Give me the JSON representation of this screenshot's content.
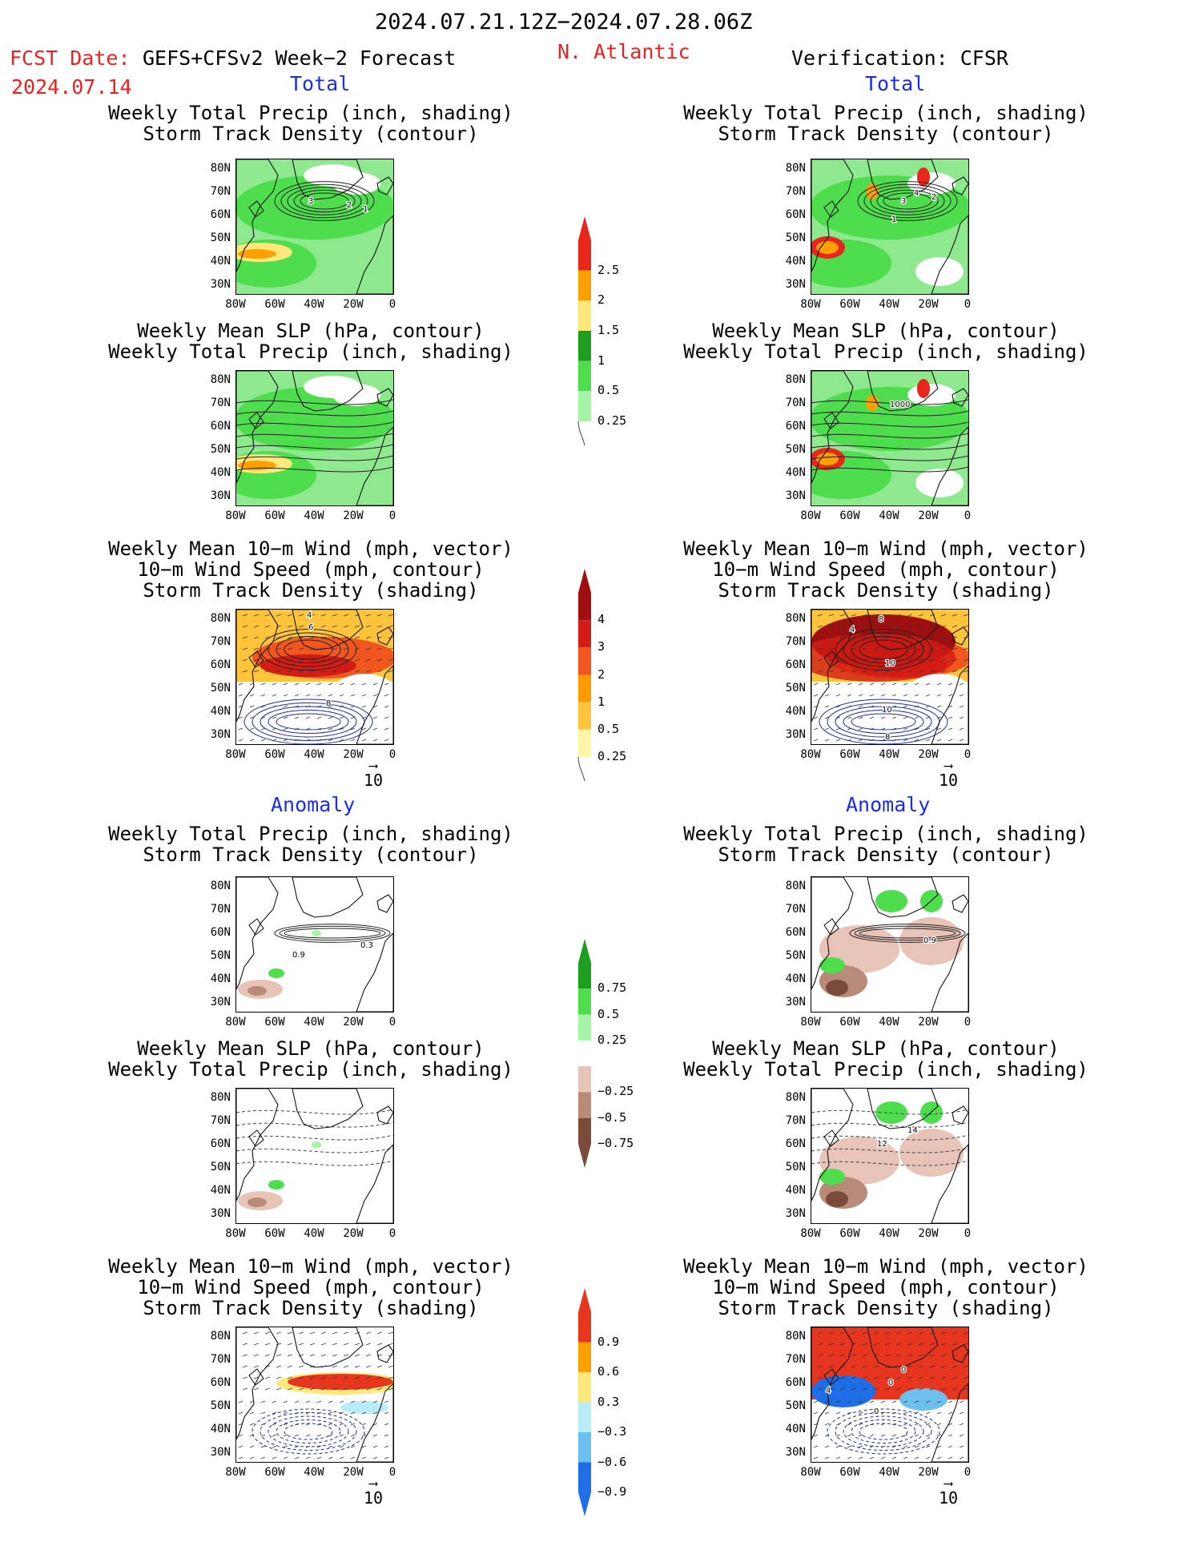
{
  "header": {
    "period": "2024.07.21.12Z−2024.07.28.06Z",
    "fcst_label": "FCST Date:",
    "fcst_model": "GEFS+CFSv2 Week−2 Forecast",
    "fcst_date": "2024.07.14",
    "region": "N. Atlantic",
    "verification": "Verification: CFSR"
  },
  "sections": {
    "total": "Total",
    "anomaly": "Anomaly"
  },
  "titles": {
    "precip_storm": [
      "Weekly Total Precip (inch, shading)",
      "Storm Track Density (contour)"
    ],
    "slp_precip": [
      "Weekly Mean SLP (hPa, contour)",
      "Weekly Total Precip (inch, shading)"
    ],
    "wind": [
      "Weekly Mean 10−m Wind (mph, vector)",
      "10−m Wind Speed (mph, contour)",
      "Storm Track Density (shading)"
    ]
  },
  "axes": {
    "lat": [
      "80N",
      "70N",
      "60N",
      "50N",
      "40N",
      "30N"
    ],
    "lon": [
      "80W",
      "60W",
      "40W",
      "20W",
      "0"
    ]
  },
  "vector_ref": "10",
  "contour_labels": {
    "fc_storm": [
      "3",
      "2",
      "1"
    ],
    "ob_storm": [
      "4",
      "3",
      "2",
      "1"
    ],
    "ob_slp": [
      "1000"
    ],
    "fc_wind": [
      "4",
      "6",
      "8"
    ],
    "ob_wind": [
      "4",
      "8",
      "10",
      "10",
      "8"
    ],
    "fc_anom_storm": [
      "0.9",
      "0.3"
    ],
    "ob_anom_storm": [
      "0.9"
    ],
    "ob_anom_slp": [
      "14",
      "12"
    ],
    "ob_anom_wind": [
      "4",
      "0",
      "0",
      "0"
    ]
  },
  "colorbars": {
    "precip": {
      "labels": [
        "2.5",
        "2",
        "1.5",
        "1",
        "0.5",
        "0.25"
      ],
      "colors": [
        "#e8261e",
        "#ff9f00",
        "#ffe87a",
        "#1e9e1e",
        "#4ddd4d",
        "#a6f5a6"
      ]
    },
    "storm": {
      "labels": [
        "4",
        "3",
        "2",
        "1",
        "0.5",
        "0.25"
      ],
      "colors": [
        "#9e0f0f",
        "#d41b14",
        "#f0561e",
        "#ff9a00",
        "#ffc43a",
        "#fff5a6"
      ]
    },
    "precip_anom": {
      "labels": [
        "0.75",
        "0.5",
        "0.25",
        "−0.25",
        "−0.5",
        "−0.75"
      ],
      "colors": [
        "#1e9e1e",
        "#4ddd4d",
        "#a6f5a6",
        "#e8c4b8",
        "#b88a78",
        "#7a4a3a"
      ]
    },
    "storm_anom": {
      "labels": [
        "0.9",
        "0.6",
        "0.3",
        "−0.3",
        "−0.6",
        "−0.9"
      ],
      "colors": [
        "#e8361e",
        "#ff9f00",
        "#ffe87a",
        "#b8ecf8",
        "#6cc0f0",
        "#1e6ee8"
      ]
    }
  }
}
